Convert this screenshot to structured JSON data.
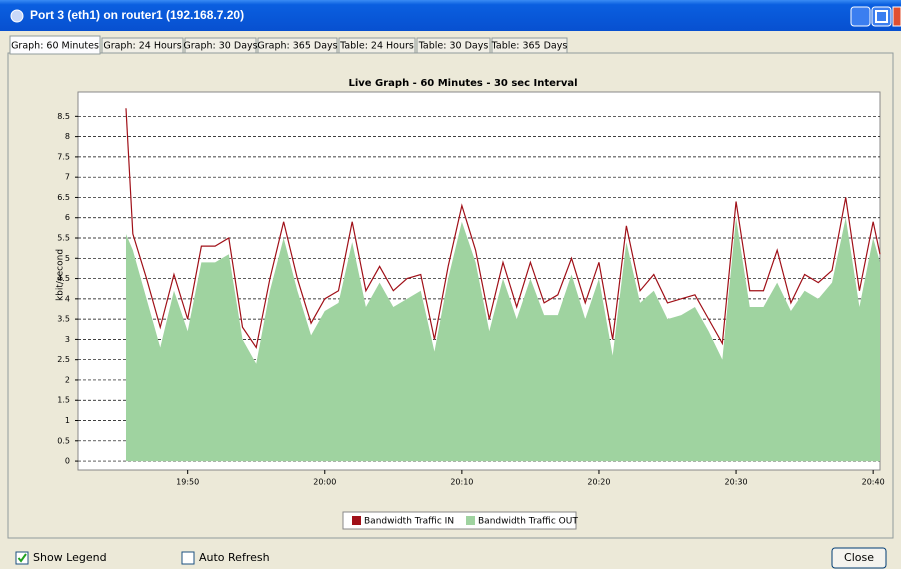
{
  "window": {
    "title": "Port 3 (eth1) on router1 (192.168.7.20)"
  },
  "tabs": [
    "Graph: 60 Minutes",
    "Graph: 24 Hours",
    "Graph: 30 Days",
    "Graph: 365 Days",
    "Table: 24 Hours",
    "Table: 30 Days",
    "Table: 365 Days"
  ],
  "selected_tab": 0,
  "controls": {
    "show_legend": {
      "label": "Show Legend",
      "checked": true
    },
    "auto_refresh": {
      "label": "Auto Refresh",
      "checked": false
    },
    "close": "Close"
  },
  "chart_data": {
    "type": "area",
    "title": "Live Graph - 60 Minutes - 30 sec Interval",
    "y_label": "kbit/second",
    "x": [
      "19:45:30",
      "19:46:00",
      "19:47:00",
      "19:48:00",
      "19:49:00",
      "19:50:00",
      "19:51:00",
      "19:52:00",
      "19:53:00",
      "19:54:00",
      "19:55:00",
      "19:56:00",
      "19:57:00",
      "19:58:00",
      "19:59:00",
      "20:00:00",
      "20:01:00",
      "20:02:00",
      "20:03:00",
      "20:04:00",
      "20:05:00",
      "20:06:00",
      "20:07:00",
      "20:08:00",
      "20:09:00",
      "20:10:00",
      "20:11:00",
      "20:12:00",
      "20:13:00",
      "20:14:00",
      "20:15:00",
      "20:16:00",
      "20:17:00",
      "20:18:00",
      "20:19:00",
      "20:20:00",
      "20:21:00",
      "20:22:00",
      "20:23:00",
      "20:24:00",
      "20:25:00",
      "20:26:00",
      "20:27:00",
      "20:28:00",
      "20:29:00",
      "20:30:00",
      "20:31:00",
      "20:32:00",
      "20:33:00",
      "20:34:00",
      "20:35:00",
      "20:36:00",
      "20:37:00",
      "20:38:00",
      "20:39:00",
      "20:40:00",
      "20:40:30"
    ],
    "series": [
      {
        "name": "Bandwidth Traffic IN",
        "color": "#a01018",
        "style": "line",
        "values": [
          8.7,
          5.6,
          4.5,
          3.3,
          4.6,
          3.5,
          5.3,
          5.3,
          5.5,
          3.3,
          2.8,
          4.5,
          5.9,
          4.5,
          3.4,
          4.0,
          4.2,
          5.9,
          4.2,
          4.8,
          4.2,
          4.5,
          4.6,
          3.0,
          4.8,
          6.3,
          5.2,
          3.5,
          4.9,
          3.8,
          4.9,
          3.9,
          4.1,
          5.0,
          3.9,
          4.9,
          3.0,
          5.8,
          4.2,
          4.6,
          3.9,
          4.0,
          4.1,
          3.5,
          2.9,
          6.4,
          4.2,
          4.2,
          5.2,
          3.9,
          4.6,
          4.4,
          4.7,
          6.5,
          4.2,
          5.9,
          5.1
        ]
      },
      {
        "name": "Bandwidth Traffic OUT",
        "color": "#9fd3a0",
        "style": "area",
        "values": [
          5.6,
          5.2,
          4.0,
          2.8,
          4.2,
          3.2,
          4.9,
          4.9,
          5.1,
          3.0,
          2.4,
          4.2,
          5.5,
          4.2,
          3.1,
          3.7,
          3.9,
          5.4,
          3.8,
          4.4,
          3.8,
          4.0,
          4.2,
          2.7,
          4.5,
          5.9,
          4.9,
          3.2,
          4.5,
          3.5,
          4.5,
          3.6,
          3.6,
          4.6,
          3.5,
          4.5,
          2.6,
          5.4,
          3.9,
          4.2,
          3.5,
          3.6,
          3.8,
          3.2,
          2.5,
          6.0,
          3.8,
          3.8,
          4.4,
          3.7,
          4.2,
          4.0,
          4.4,
          6.0,
          3.8,
          5.5,
          4.9
        ]
      }
    ],
    "xlim": [
      "19:42:00",
      "20:40:30"
    ],
    "xticks": [
      "19:50",
      "20:00",
      "20:10",
      "20:20",
      "20:30",
      "20:40"
    ],
    "ylim": [
      -0.22,
      9.1
    ],
    "yticks": [
      0,
      0.5,
      1,
      1.5,
      2,
      2.5,
      3,
      3.5,
      4,
      4.5,
      5,
      5.5,
      6,
      6.5,
      7,
      7.5,
      8,
      8.5
    ],
    "grid": true,
    "legend": "bottom"
  }
}
